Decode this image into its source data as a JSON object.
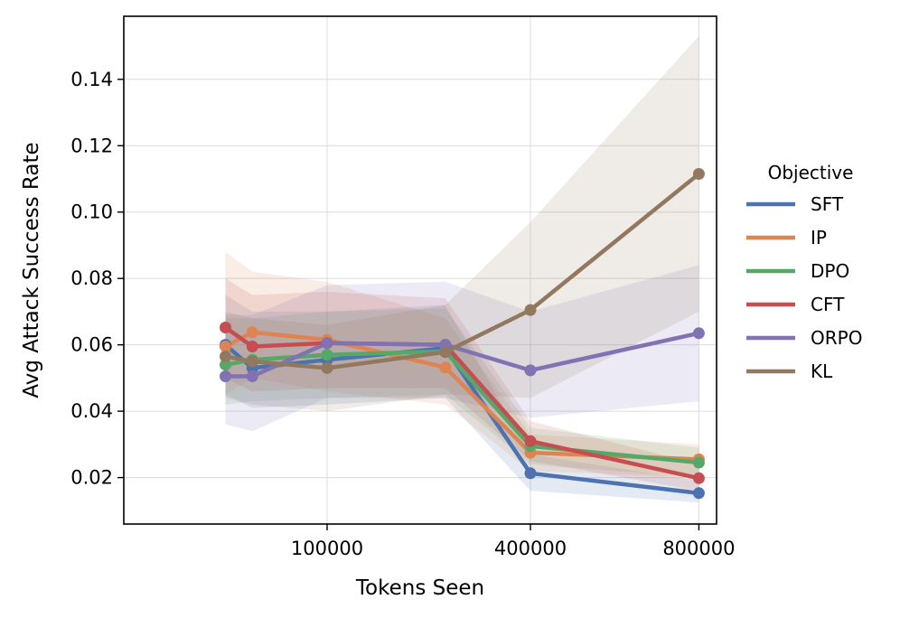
{
  "chart_data": {
    "type": "line",
    "xlabel": "Tokens Seen",
    "ylabel": "Avg Attack Success Rate",
    "xscale": "sqrt",
    "xlim": [
      0,
      850000
    ],
    "ylim": [
      0.006,
      0.159
    ],
    "xticks": [
      100000,
      400000,
      800000
    ],
    "yticks": [
      0.02,
      0.04,
      0.06,
      0.08,
      0.1,
      0.12,
      0.14
    ],
    "ytick_labels": [
      "0.02",
      "0.04",
      "0.06",
      "0.08",
      "0.10",
      "0.12",
      "0.14"
    ],
    "grid": true,
    "legend": {
      "title": "Objective",
      "placement": "right-outside"
    },
    "x": [
      25000,
      40000,
      100000,
      250000,
      400000,
      800000
    ],
    "series": [
      {
        "name": "SFT",
        "color": "#4c72b0",
        "values": [
          0.06,
          0.053,
          0.0555,
          0.059,
          0.0213,
          0.0153
        ],
        "lower": [
          0.045,
          0.041,
          0.042,
          0.044,
          0.016,
          0.0125
        ],
        "upper": [
          0.075,
          0.07,
          0.07,
          0.072,
          0.027,
          0.019
        ]
      },
      {
        "name": "IP",
        "color": "#dd8452",
        "values": [
          0.0595,
          0.0638,
          0.0615,
          0.0532,
          0.0275,
          0.0255
        ],
        "lower": [
          0.045,
          0.05,
          0.046,
          0.042,
          0.022,
          0.02
        ],
        "upper": [
          0.088,
          0.082,
          0.079,
          0.068,
          0.033,
          0.03
        ]
      },
      {
        "name": "DPO",
        "color": "#55a868",
        "values": [
          0.054,
          0.0555,
          0.057,
          0.058,
          0.0295,
          0.0245
        ],
        "lower": [
          0.042,
          0.043,
          0.044,
          0.045,
          0.024,
          0.02
        ],
        "upper": [
          0.068,
          0.068,
          0.07,
          0.071,
          0.035,
          0.029
        ]
      },
      {
        "name": "CFT",
        "color": "#c44e52",
        "values": [
          0.0652,
          0.0595,
          0.0605,
          0.06,
          0.031,
          0.0198
        ],
        "lower": [
          0.05,
          0.046,
          0.047,
          0.047,
          0.025,
          0.016
        ],
        "upper": [
          0.08,
          0.075,
          0.076,
          0.074,
          0.037,
          0.024
        ]
      },
      {
        "name": "ORPO",
        "color": "#8172b3",
        "values": [
          0.0505,
          0.0505,
          0.0605,
          0.06,
          0.0523,
          0.0635
        ],
        "lower": [
          0.036,
          0.034,
          0.044,
          0.044,
          0.038,
          0.043
        ],
        "upper": [
          0.069,
          0.069,
          0.078,
          0.079,
          0.07,
          0.084
        ]
      },
      {
        "name": "KL",
        "color": "#937860",
        "values": [
          0.0565,
          0.055,
          0.053,
          0.0578,
          0.0705,
          0.1115
        ],
        "lower": [
          0.044,
          0.042,
          0.04,
          0.045,
          0.044,
          0.07
        ],
        "upper": [
          0.07,
          0.068,
          0.066,
          0.072,
          0.097,
          0.153
        ]
      }
    ]
  }
}
